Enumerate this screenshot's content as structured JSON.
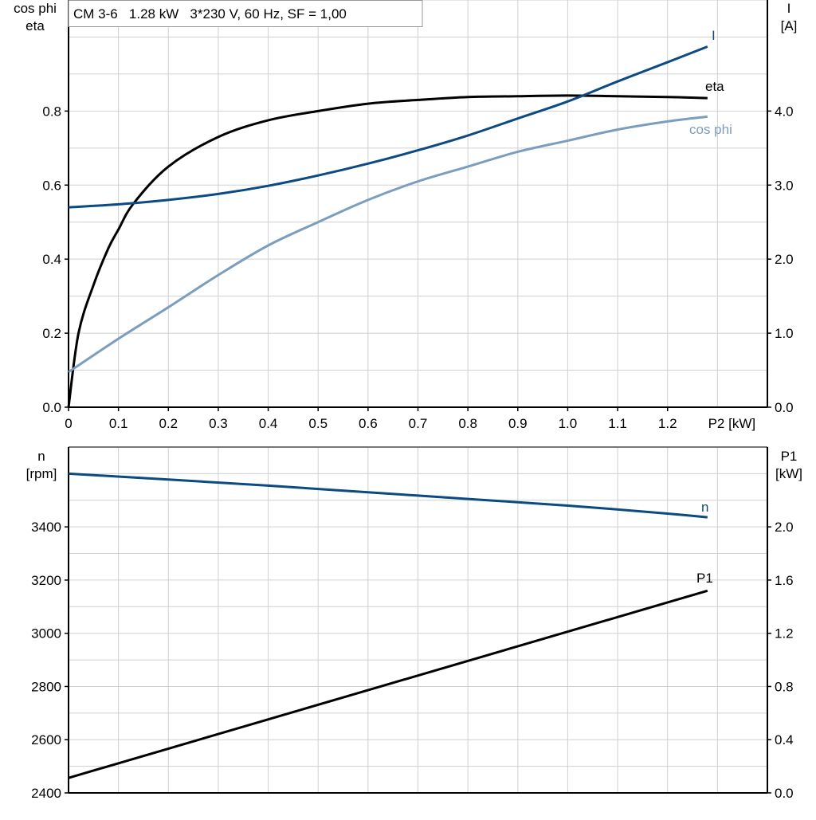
{
  "chart_data": [
    {
      "type": "line",
      "title": "CM 3-6   1.28 kW   3*230 V, 60 Hz, SF = 1,00",
      "xlabel": "P2 [kW]",
      "ylabel_left": [
        "cos phi",
        "eta"
      ],
      "ylabel_right": [
        "I",
        "[A]"
      ],
      "xlim": [
        0,
        1.4
      ],
      "ylim_left": [
        0,
        1.1
      ],
      "ylim_right": [
        0,
        5.5
      ],
      "x_ticks": [
        "0",
        "0.1",
        "0.2",
        "0.3",
        "0.4",
        "0.5",
        "0.6",
        "0.7",
        "0.8",
        "0.9",
        "1.0",
        "1.1",
        "1.2"
      ],
      "y_ticks_left": [
        "0.0",
        "0.2",
        "0.4",
        "0.6",
        "0.8"
      ],
      "y_ticks_right": [
        "0.0",
        "1.0",
        "2.0",
        "3.0",
        "4.0"
      ],
      "grid": true,
      "series": [
        {
          "name": "eta",
          "axis": "left",
          "color": "#000000",
          "x": [
            0,
            0.02,
            0.05,
            0.08,
            0.1,
            0.13,
            0.2,
            0.3,
            0.4,
            0.5,
            0.6,
            0.7,
            0.8,
            0.9,
            1.0,
            1.1,
            1.2,
            1.28
          ],
          "y": [
            0,
            0.2,
            0.33,
            0.43,
            0.48,
            0.55,
            0.65,
            0.73,
            0.775,
            0.8,
            0.82,
            0.83,
            0.838,
            0.84,
            0.842,
            0.84,
            0.838,
            0.835
          ]
        },
        {
          "name": "I",
          "axis": "right",
          "color": "#0b4a82",
          "x": [
            0,
            0.1,
            0.2,
            0.3,
            0.4,
            0.5,
            0.6,
            0.7,
            0.8,
            0.9,
            1.0,
            1.1,
            1.2,
            1.28
          ],
          "y": [
            2.7,
            2.74,
            2.8,
            2.88,
            2.99,
            3.13,
            3.29,
            3.47,
            3.67,
            3.9,
            4.13,
            4.4,
            4.66,
            4.87
          ]
        },
        {
          "name": "cos phi",
          "axis": "left",
          "color": "#7b9ebf",
          "x": [
            0,
            0.1,
            0.2,
            0.3,
            0.4,
            0.5,
            0.6,
            0.7,
            0.8,
            0.9,
            1.0,
            1.1,
            1.2,
            1.28
          ],
          "y": [
            0.095,
            0.185,
            0.27,
            0.357,
            0.437,
            0.5,
            0.56,
            0.61,
            0.65,
            0.69,
            0.72,
            0.75,
            0.772,
            0.785
          ]
        }
      ]
    },
    {
      "type": "line",
      "ylabel_left": [
        "n",
        "[rpm]"
      ],
      "ylabel_right": [
        "P1",
        "[kW]"
      ],
      "xlim": [
        0,
        1.4
      ],
      "ylim_left": [
        2400,
        3700
      ],
      "ylim_right": [
        0,
        2.6
      ],
      "y_ticks_left": [
        "2400",
        "2600",
        "2800",
        "3000",
        "3200",
        "3400"
      ],
      "y_ticks_right": [
        "0.0",
        "0.4",
        "0.8",
        "1.2",
        "1.6",
        "2.0"
      ],
      "grid": true,
      "series": [
        {
          "name": "n",
          "axis": "left",
          "color": "#0b4a82",
          "x": [
            0,
            0.2,
            0.4,
            0.6,
            0.8,
            1.0,
            1.2,
            1.28
          ],
          "y": [
            3600,
            3578,
            3555,
            3530,
            3505,
            3480,
            3450,
            3436
          ]
        },
        {
          "name": "P1",
          "axis": "right",
          "color": "#000000",
          "x": [
            0,
            1.28
          ],
          "y": [
            0.113,
            1.52
          ]
        }
      ]
    }
  ]
}
